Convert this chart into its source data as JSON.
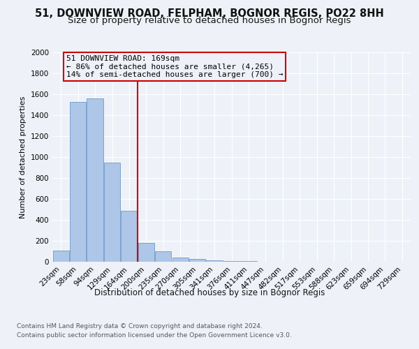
{
  "title1": "51, DOWNVIEW ROAD, FELPHAM, BOGNOR REGIS, PO22 8HH",
  "title2": "Size of property relative to detached houses in Bognor Regis",
  "xlabel": "Distribution of detached houses by size in Bognor Regis",
  "ylabel": "Number of detached properties",
  "categories": [
    "23sqm",
    "58sqm",
    "94sqm",
    "129sqm",
    "164sqm",
    "200sqm",
    "235sqm",
    "270sqm",
    "305sqm",
    "341sqm",
    "376sqm",
    "411sqm",
    "447sqm",
    "482sqm",
    "517sqm",
    "553sqm",
    "588sqm",
    "623sqm",
    "659sqm",
    "694sqm",
    "729sqm"
  ],
  "values": [
    110,
    1530,
    1560,
    950,
    490,
    180,
    100,
    40,
    25,
    15,
    10,
    5,
    0,
    0,
    0,
    0,
    0,
    0,
    0,
    0,
    0
  ],
  "bar_color": "#aec6e8",
  "bar_edge_color": "#5a8fc0",
  "annotation_text_line1": "51 DOWNVIEW ROAD: 169sqm",
  "annotation_text_line2": "← 86% of detached houses are smaller (4,265)",
  "annotation_text_line3": "14% of semi-detached houses are larger (700) →",
  "vline_color": "#cc0000",
  "box_edge_color": "#cc0000",
  "ylim": [
    0,
    2000
  ],
  "yticks": [
    0,
    200,
    400,
    600,
    800,
    1000,
    1200,
    1400,
    1600,
    1800,
    2000
  ],
  "footnote_line1": "Contains HM Land Registry data © Crown copyright and database right 2024.",
  "footnote_line2": "Contains public sector information licensed under the Open Government Licence v3.0.",
  "bg_color": "#eef2f8",
  "grid_color": "#ffffff",
  "title1_fontsize": 10.5,
  "title2_fontsize": 9.5,
  "xlabel_fontsize": 8.5,
  "ylabel_fontsize": 8,
  "tick_fontsize": 7.5,
  "annotation_fontsize": 8,
  "footnote_fontsize": 6.5
}
